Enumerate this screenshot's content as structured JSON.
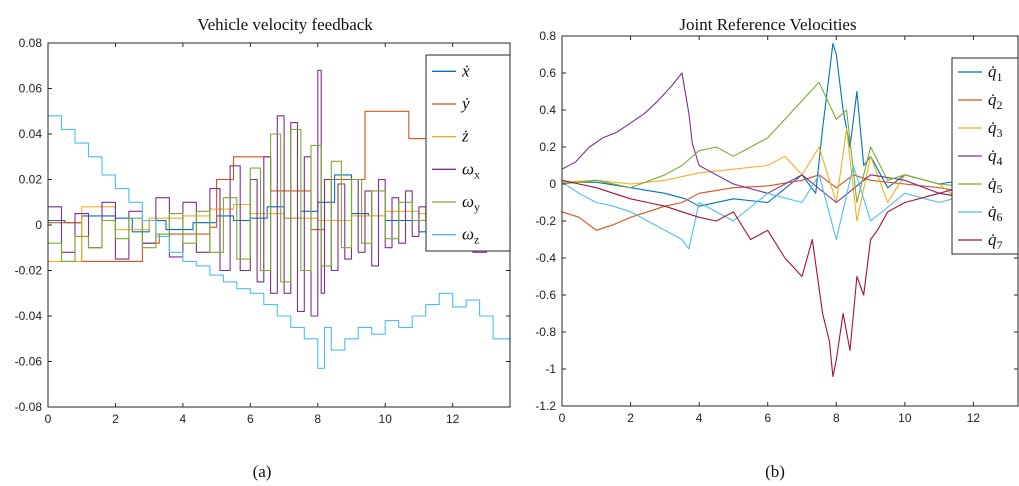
{
  "figure": {
    "captions": [
      "(a)",
      "(b)"
    ]
  },
  "chart_data": [
    {
      "type": "line",
      "title": "Vehicle velocity feedback",
      "xlabel": "",
      "ylabel": "",
      "xlim": [
        0,
        13.7
      ],
      "ylim": [
        -0.08,
        0.08
      ],
      "xticks": [
        0,
        2,
        4,
        6,
        8,
        10,
        12
      ],
      "yticks": [
        -0.08,
        -0.06,
        -0.04,
        -0.02,
        0,
        0.02,
        0.04,
        0.06,
        0.08
      ],
      "ytick_labels": [
        "-0.08",
        "-0.06",
        "-0.04",
        "-0.02",
        "0",
        "0.02",
        "0.04",
        "0.06",
        "0.08"
      ],
      "grid": false,
      "legend_position": "top-right",
      "series": [
        {
          "name": "ẋ",
          "sub": "",
          "color": "#0072BD",
          "step": true,
          "x": [
            0,
            0.5,
            1,
            2,
            2.5,
            3,
            3.5,
            4.3,
            5,
            5.5,
            6,
            6.5,
            7,
            7.5,
            8,
            8.5,
            9,
            9.5,
            10,
            11,
            11.5,
            12,
            12.5,
            13,
            13.7
          ],
          "y": [
            0.002,
            0.001,
            0.004,
            0.003,
            -0.003,
            0.002,
            -0.002,
            0.001,
            0.004,
            0.002,
            0.003,
            0.008,
            0.003,
            0.006,
            0.01,
            0.022,
            0.005,
            0.004,
            0.002,
            -0.003,
            0.004,
            0.002,
            -0.003,
            0.001,
            0.002
          ]
        },
        {
          "name": "ẏ",
          "sub": "",
          "color": "#D95319",
          "step": true,
          "x": [
            0,
            1,
            1.6,
            2.8,
            3.3,
            4.8,
            5,
            5.5,
            6.6,
            7.8,
            8.2,
            9.4,
            10.7,
            11.5,
            12.2,
            13.2,
            13.6,
            13.7
          ],
          "y": [
            0.001,
            -0.016,
            -0.016,
            -0.008,
            -0.004,
            -0.001,
            0.02,
            0.03,
            0.015,
            -0.002,
            0.02,
            0.05,
            0.038,
            0.03,
            0.012,
            0.012,
            0.016,
            0.016
          ]
        },
        {
          "name": "ż",
          "sub": "",
          "color": "#EDB120",
          "step": true,
          "x": [
            0,
            1,
            1.6,
            2,
            3,
            4,
            4.8,
            5.5,
            6,
            7,
            8,
            9,
            10,
            11,
            12,
            13,
            13.7
          ],
          "y": [
            -0.016,
            0.008,
            0.008,
            -0.002,
            0.003,
            0.004,
            0.007,
            0.009,
            0.005,
            0.003,
            0.002,
            0.004,
            0.006,
            0.005,
            0.004,
            0.003,
            0.003
          ]
        },
        {
          "name": "ω",
          "sub": "x",
          "color": "#7E2F8E",
          "step": true,
          "x": [
            0,
            0.4,
            0.8,
            1.2,
            1.6,
            2.0,
            2.4,
            2.8,
            3.2,
            3.6,
            4.0,
            4.4,
            4.8,
            5.1,
            5.4,
            5.7,
            6.0,
            6.2,
            6.4,
            6.6,
            6.8,
            7.0,
            7.2,
            7.4,
            7.6,
            7.8,
            8.0,
            8.1,
            8.2,
            8.4,
            8.6,
            8.8,
            9.0,
            9.2,
            9.4,
            9.6,
            9.8,
            10.0,
            10.2,
            10.4,
            10.6,
            10.8,
            11.0,
            11.3,
            11.6,
            12.0,
            12.3,
            12.6,
            13.0,
            13.3,
            13.7
          ],
          "y": [
            0.008,
            -0.012,
            0.005,
            -0.01,
            0.01,
            -0.015,
            0.006,
            -0.008,
            0.012,
            -0.014,
            0.01,
            -0.012,
            0.016,
            -0.02,
            0.026,
            -0.02,
            0.02,
            -0.025,
            0.03,
            -0.03,
            0.048,
            -0.03,
            0.045,
            -0.038,
            0.03,
            -0.04,
            0.068,
            -0.03,
            0.02,
            -0.02,
            0.018,
            -0.015,
            0.02,
            -0.012,
            0.015,
            -0.018,
            0.02,
            -0.01,
            0.012,
            -0.008,
            0.015,
            -0.005,
            0.008,
            -0.006,
            0.01,
            -0.004,
            0.006,
            -0.012,
            0.003,
            -0.01,
            0.008
          ]
        },
        {
          "name": "ω",
          "sub": "y",
          "color": "#77AC30",
          "step": true,
          "x": [
            0,
            0.4,
            0.8,
            1.2,
            1.6,
            2.0,
            2.4,
            2.8,
            3.2,
            3.6,
            4.0,
            4.4,
            4.8,
            5.2,
            5.6,
            6.0,
            6.3,
            6.6,
            6.9,
            7.2,
            7.5,
            7.8,
            8.1,
            8.4,
            8.7,
            9.0,
            9.3,
            9.6,
            10.0,
            10.4,
            10.8,
            11.2,
            11.6,
            12.0,
            12.5,
            13.0,
            13.7
          ],
          "y": [
            -0.008,
            -0.016,
            -0.005,
            -0.01,
            0.002,
            -0.006,
            0.003,
            -0.01,
            -0.004,
            0.005,
            -0.008,
            0.006,
            -0.012,
            0.012,
            -0.015,
            0.025,
            -0.02,
            0.04,
            -0.025,
            0.042,
            -0.02,
            0.035,
            -0.018,
            0.028,
            -0.01,
            0.02,
            -0.008,
            0.015,
            -0.006,
            0.01,
            0.002,
            0.008,
            -0.004,
            0.006,
            0.002,
            -0.004,
            0.002
          ]
        },
        {
          "name": "ω",
          "sub": "z",
          "color": "#4DBEEE",
          "step": true,
          "x": [
            0,
            0.4,
            0.8,
            1.2,
            1.6,
            2.0,
            2.4,
            2.8,
            3.2,
            3.6,
            4.0,
            4.4,
            4.8,
            5.2,
            5.6,
            6.0,
            6.4,
            6.8,
            7.2,
            7.6,
            8.0,
            8.2,
            8.4,
            8.8,
            9.2,
            9.6,
            10.0,
            10.4,
            10.8,
            11.2,
            11.6,
            12.0,
            12.4,
            12.8,
            13.2,
            13.7
          ],
          "y": [
            0.048,
            0.042,
            0.036,
            0.03,
            0.022,
            0.016,
            0.01,
            0.002,
            -0.005,
            -0.012,
            -0.016,
            -0.018,
            -0.022,
            -0.025,
            -0.028,
            -0.03,
            -0.035,
            -0.04,
            -0.045,
            -0.05,
            -0.063,
            -0.045,
            -0.055,
            -0.05,
            -0.045,
            -0.048,
            -0.042,
            -0.045,
            -0.04,
            -0.035,
            -0.03,
            -0.036,
            -0.033,
            -0.04,
            -0.05,
            -0.053
          ]
        }
      ]
    },
    {
      "type": "line",
      "title": "Joint Reference Velocities",
      "xlabel": "",
      "ylabel": "",
      "xlim": [
        0,
        13.3
      ],
      "ylim": [
        -1.2,
        0.8
      ],
      "xticks": [
        0,
        2,
        4,
        6,
        8,
        10,
        12
      ],
      "yticks": [
        -1.2,
        -1,
        -0.8,
        -0.6,
        -0.4,
        -0.2,
        0,
        0.2,
        0.4,
        0.6,
        0.8
      ],
      "ytick_labels": [
        "-1.2",
        "-1",
        "-0.8",
        "-0.6",
        "-0.4",
        "-0.2",
        "0",
        "0.2",
        "0.4",
        "0.6",
        "0.8"
      ],
      "grid": false,
      "legend_position": "top-right",
      "series": [
        {
          "name": "q̇",
          "sub": "1",
          "color": "#0072BD",
          "step": false,
          "x": [
            0,
            1,
            2,
            3,
            3.6,
            4,
            5,
            6,
            7,
            7.4,
            7.6,
            7.8,
            7.9,
            8.0,
            8.2,
            8.4,
            8.6,
            8.8,
            9.0,
            9.5,
            10,
            11,
            12,
            13,
            13.3
          ],
          "y": [
            0.01,
            0.01,
            -0.02,
            -0.05,
            -0.08,
            -0.12,
            -0.08,
            -0.1,
            0.05,
            -0.05,
            0.3,
            0.6,
            0.76,
            0.7,
            0.4,
            0.2,
            0.5,
            0.1,
            0.15,
            -0.02,
            0.05,
            0,
            0.03,
            0.05,
            0.06
          ]
        },
        {
          "name": "q̇",
          "sub": "2",
          "color": "#D95319",
          "step": false,
          "x": [
            0,
            0.5,
            1,
            1.5,
            2,
            2.5,
            3,
            3.5,
            4,
            5,
            6,
            7,
            7.5,
            8,
            8.5,
            9,
            10,
            11,
            12,
            13,
            13.3
          ],
          "y": [
            -0.15,
            -0.18,
            -0.25,
            -0.22,
            -0.18,
            -0.15,
            -0.12,
            -0.1,
            -0.05,
            -0.02,
            -0.01,
            0.02,
            0.05,
            -0.02,
            0.05,
            0.02,
            0,
            -0.02,
            -0.05,
            -0.12,
            -0.15
          ]
        },
        {
          "name": "q̇",
          "sub": "3",
          "color": "#EDB120",
          "step": false,
          "x": [
            0,
            1,
            2,
            3,
            3.5,
            4,
            5,
            6,
            6.5,
            7,
            7.5,
            8,
            8.3,
            8.6,
            9,
            9.5,
            10,
            11,
            12,
            13,
            13.3
          ],
          "y": [
            0.01,
            0.02,
            0.0,
            0.02,
            0.04,
            0.06,
            0.08,
            0.1,
            0.15,
            0.05,
            0.2,
            -0.1,
            0.3,
            -0.2,
            0.15,
            -0.1,
            0.05,
            0,
            -0.15,
            -0.1,
            -0.12
          ]
        },
        {
          "name": "q̇",
          "sub": "4",
          "color": "#7E2F8E",
          "step": false,
          "x": [
            0,
            0.4,
            0.8,
            1.2,
            1.6,
            2.0,
            2.4,
            2.8,
            3.2,
            3.5,
            3.7,
            3.8,
            4.0,
            4.5,
            5,
            6,
            7,
            8,
            9,
            10,
            11,
            12,
            13,
            13.3
          ],
          "y": [
            0.08,
            0.12,
            0.2,
            0.25,
            0.28,
            0.33,
            0.38,
            0.45,
            0.53,
            0.6,
            0.38,
            0.22,
            0.1,
            0.05,
            0.0,
            -0.05,
            0.05,
            -0.1,
            0.05,
            0.02,
            -0.05,
            0,
            0.02,
            0.05
          ]
        },
        {
          "name": "q̇",
          "sub": "5",
          "color": "#77AC30",
          "step": false,
          "x": [
            0,
            1,
            2,
            3,
            3.5,
            4,
            4.5,
            5,
            5.5,
            6,
            6.5,
            7,
            7.5,
            8,
            8.3,
            8.6,
            9,
            9.5,
            10,
            11,
            12,
            13,
            13.3
          ],
          "y": [
            0,
            0.02,
            -0.02,
            0.05,
            0.1,
            0.18,
            0.2,
            0.15,
            0.2,
            0.25,
            0.35,
            0.45,
            0.55,
            0.35,
            0.4,
            -0.1,
            0.2,
            0.02,
            0.05,
            0,
            -0.02,
            0.05,
            0.08
          ]
        },
        {
          "name": "q̇",
          "sub": "6",
          "color": "#4DBEEE",
          "step": false,
          "x": [
            0,
            0.5,
            1,
            1.5,
            2,
            2.5,
            3,
            3.5,
            3.7,
            4,
            5,
            6,
            7,
            7.5,
            8,
            8.5,
            9,
            10,
            11,
            12,
            13,
            13.3
          ],
          "y": [
            0.01,
            -0.05,
            -0.1,
            -0.12,
            -0.15,
            -0.2,
            -0.25,
            -0.3,
            -0.35,
            -0.1,
            -0.2,
            -0.05,
            -0.1,
            0.05,
            -0.3,
            0.1,
            -0.2,
            -0.05,
            -0.1,
            -0.05,
            -0.1,
            -0.12
          ]
        },
        {
          "name": "q̇",
          "sub": "7",
          "color": "#A2142F",
          "step": false,
          "x": [
            0,
            0.5,
            1,
            1.5,
            2,
            2.5,
            3,
            3.5,
            4,
            4.5,
            5,
            5.5,
            6,
            6.5,
            7,
            7.3,
            7.6,
            7.8,
            7.9,
            8.0,
            8.2,
            8.4,
            8.6,
            8.8,
            9.0,
            9.2,
            9.5,
            10,
            11,
            12,
            13,
            13.3
          ],
          "y": [
            0.02,
            0.0,
            -0.02,
            -0.05,
            -0.08,
            -0.1,
            -0.12,
            -0.15,
            -0.18,
            -0.2,
            -0.15,
            -0.3,
            -0.25,
            -0.4,
            -0.5,
            -0.3,
            -0.7,
            -0.85,
            -1.04,
            -0.95,
            -0.7,
            -0.9,
            -0.5,
            -0.6,
            -0.3,
            -0.25,
            -0.15,
            -0.1,
            -0.05,
            -0.08,
            -0.05,
            -0.15
          ]
        }
      ]
    }
  ]
}
